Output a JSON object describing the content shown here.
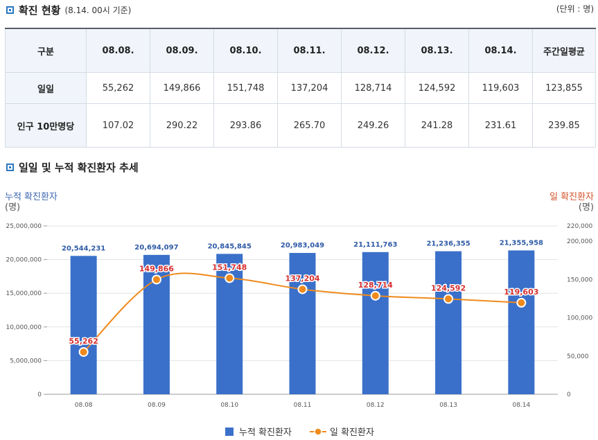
{
  "status": {
    "title": "확진 현황",
    "subtitle": "(8.14. 00시 기준)",
    "unit": "(단위 : 명)"
  },
  "table": {
    "header": [
      "구분",
      "08.08.",
      "08.09.",
      "08.10.",
      "08.11.",
      "08.12.",
      "08.13.",
      "08.14.",
      "주간일평균"
    ],
    "rows": [
      {
        "label": "일일",
        "values": [
          "55,262",
          "149,866",
          "151,748",
          "137,204",
          "128,714",
          "124,592",
          "119,603",
          "123,855"
        ]
      },
      {
        "label": "인구 10만명당",
        "values": [
          "107.02",
          "290.22",
          "293.86",
          "265.70",
          "249.26",
          "241.28",
          "231.61",
          "239.85"
        ]
      }
    ]
  },
  "trend": {
    "title": "일일 및 누적 확진환자 추세",
    "left_axis_label": "누적 확진환자",
    "left_axis_unit": "(명)",
    "right_axis_label": "일 확진환자",
    "right_axis_unit": "(명)"
  },
  "chart_data": {
    "type": "bar",
    "categories": [
      "08.08",
      "08.09",
      "08.10",
      "08.11",
      "08.12",
      "08.13",
      "08.14"
    ],
    "series": [
      {
        "name": "누적 확진환자",
        "type": "bar",
        "axis": "left",
        "color": "#3a70c9",
        "values": [
          20544231,
          20694097,
          20845845,
          20983049,
          21111763,
          21236355,
          21355958
        ],
        "labels": [
          "20,544,231",
          "20,694,097",
          "20,845,845",
          "20,983,049",
          "21,111,763",
          "21,236,355",
          "21,355,958"
        ]
      },
      {
        "name": "일 확진환자",
        "type": "line",
        "axis": "right",
        "color": "#f08a1c",
        "values": [
          55262,
          149866,
          151748,
          137204,
          128714,
          124592,
          119603
        ],
        "labels": [
          "55,262",
          "149,866",
          "151,748",
          "137,204",
          "128,714",
          "124,592",
          "119,603"
        ]
      }
    ],
    "left_axis": {
      "min": 0,
      "max": 25000000,
      "ticks": [
        0,
        5000000,
        10000000,
        15000000,
        20000000,
        25000000
      ],
      "tick_labels": [
        "0",
        "5,000,000",
        "10,000,000",
        "15,000,000",
        "20,000,000",
        "25,000,000"
      ]
    },
    "right_axis": {
      "min": 0,
      "max": 220000,
      "ticks": [
        0,
        50000,
        100000,
        150000,
        200000,
        220000
      ],
      "tick_labels": [
        "0",
        "50,000",
        "100,000",
        "150,000",
        "200,000",
        "220,000"
      ]
    },
    "grid": true,
    "legend": "bottom"
  }
}
